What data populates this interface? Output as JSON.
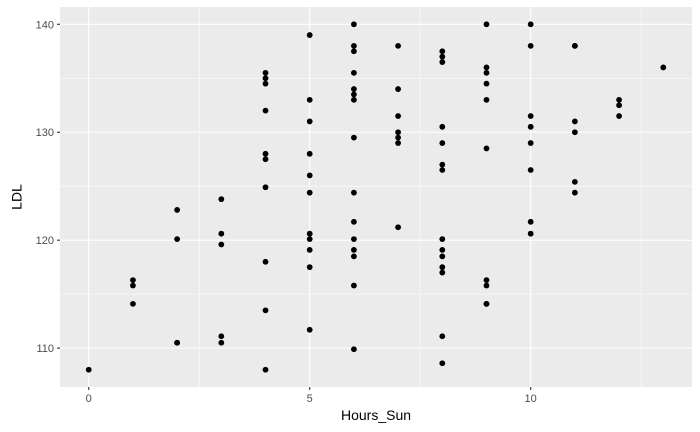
{
  "chart_data": {
    "type": "scatter",
    "title": "",
    "xlabel": "Hours_Sun",
    "ylabel": "LDL",
    "xlim": [
      -0.65,
      13.65
    ],
    "ylim": [
      106.4,
      141.6
    ],
    "x_ticks": [
      0,
      5,
      10
    ],
    "x_minor_ticks": [
      2.5,
      7.5,
      12.5
    ],
    "y_ticks": [
      110,
      120,
      130,
      140
    ],
    "y_minor_ticks": [
      115,
      125,
      135
    ],
    "grid": true,
    "legend": "none",
    "colors": {
      "panel": "#ebebeb",
      "grid": "#ffffff",
      "point": "#000000",
      "tick_text": "#4d4d4d"
    },
    "points": [
      {
        "x": 0,
        "y": 108.0
      },
      {
        "x": 1,
        "y": 116.3
      },
      {
        "x": 1,
        "y": 115.8
      },
      {
        "x": 1,
        "y": 114.1
      },
      {
        "x": 2,
        "y": 122.8
      },
      {
        "x": 2,
        "y": 120.1
      },
      {
        "x": 2,
        "y": 110.5
      },
      {
        "x": 2,
        "y": 110.5
      },
      {
        "x": 3,
        "y": 123.8
      },
      {
        "x": 3,
        "y": 120.6
      },
      {
        "x": 3,
        "y": 119.6
      },
      {
        "x": 3,
        "y": 111.1
      },
      {
        "x": 3,
        "y": 110.5
      },
      {
        "x": 4,
        "y": 135.5
      },
      {
        "x": 4,
        "y": 135.0
      },
      {
        "x": 4,
        "y": 134.5
      },
      {
        "x": 4,
        "y": 132.0
      },
      {
        "x": 4,
        "y": 128.0
      },
      {
        "x": 4,
        "y": 127.5
      },
      {
        "x": 4,
        "y": 124.9
      },
      {
        "x": 4,
        "y": 118.0
      },
      {
        "x": 4,
        "y": 113.5
      },
      {
        "x": 4,
        "y": 108.0
      },
      {
        "x": 5,
        "y": 139.0
      },
      {
        "x": 5,
        "y": 133.0
      },
      {
        "x": 5,
        "y": 131.0
      },
      {
        "x": 5,
        "y": 128.0
      },
      {
        "x": 5,
        "y": 126.0
      },
      {
        "x": 5,
        "y": 124.4
      },
      {
        "x": 5,
        "y": 120.6
      },
      {
        "x": 5,
        "y": 120.1
      },
      {
        "x": 5,
        "y": 119.1
      },
      {
        "x": 5,
        "y": 117.5
      },
      {
        "x": 5,
        "y": 111.7
      },
      {
        "x": 6,
        "y": 140.0
      },
      {
        "x": 6,
        "y": 138.0
      },
      {
        "x": 6,
        "y": 137.5
      },
      {
        "x": 6,
        "y": 135.5
      },
      {
        "x": 6,
        "y": 134.0
      },
      {
        "x": 6,
        "y": 133.5
      },
      {
        "x": 6,
        "y": 133.0
      },
      {
        "x": 6,
        "y": 129.5
      },
      {
        "x": 6,
        "y": 124.4
      },
      {
        "x": 6,
        "y": 121.7
      },
      {
        "x": 6,
        "y": 120.1
      },
      {
        "x": 6,
        "y": 119.1
      },
      {
        "x": 6,
        "y": 118.5
      },
      {
        "x": 6,
        "y": 115.8
      },
      {
        "x": 6,
        "y": 109.9
      },
      {
        "x": 7,
        "y": 138.0
      },
      {
        "x": 7,
        "y": 134.0
      },
      {
        "x": 7,
        "y": 131.5
      },
      {
        "x": 7,
        "y": 130.0
      },
      {
        "x": 7,
        "y": 129.5
      },
      {
        "x": 7,
        "y": 129.0
      },
      {
        "x": 7,
        "y": 121.2
      },
      {
        "x": 8,
        "y": 137.5
      },
      {
        "x": 8,
        "y": 137.0
      },
      {
        "x": 8,
        "y": 136.5
      },
      {
        "x": 8,
        "y": 130.5
      },
      {
        "x": 8,
        "y": 129.0
      },
      {
        "x": 8,
        "y": 127.0
      },
      {
        "x": 8,
        "y": 126.5
      },
      {
        "x": 8,
        "y": 120.1
      },
      {
        "x": 8,
        "y": 119.1
      },
      {
        "x": 8,
        "y": 118.5
      },
      {
        "x": 8,
        "y": 117.5
      },
      {
        "x": 8,
        "y": 117.0
      },
      {
        "x": 8,
        "y": 111.1
      },
      {
        "x": 8,
        "y": 108.6
      },
      {
        "x": 9,
        "y": 140.0
      },
      {
        "x": 9,
        "y": 136.0
      },
      {
        "x": 9,
        "y": 135.5
      },
      {
        "x": 9,
        "y": 134.5
      },
      {
        "x": 9,
        "y": 133.0
      },
      {
        "x": 9,
        "y": 128.5
      },
      {
        "x": 9,
        "y": 116.3
      },
      {
        "x": 9,
        "y": 115.8
      },
      {
        "x": 9,
        "y": 114.1
      },
      {
        "x": 9,
        "y": 114.1
      },
      {
        "x": 10,
        "y": 140.0
      },
      {
        "x": 10,
        "y": 138.0
      },
      {
        "x": 10,
        "y": 131.5
      },
      {
        "x": 10,
        "y": 130.5
      },
      {
        "x": 10,
        "y": 129.0
      },
      {
        "x": 10,
        "y": 126.5
      },
      {
        "x": 10,
        "y": 121.7
      },
      {
        "x": 10,
        "y": 120.6
      },
      {
        "x": 11,
        "y": 138.0
      },
      {
        "x": 11,
        "y": 138.0
      },
      {
        "x": 11,
        "y": 131.0
      },
      {
        "x": 11,
        "y": 130.0
      },
      {
        "x": 11,
        "y": 125.4
      },
      {
        "x": 11,
        "y": 124.4
      },
      {
        "x": 12,
        "y": 133.0
      },
      {
        "x": 12,
        "y": 132.5
      },
      {
        "x": 12,
        "y": 131.5
      },
      {
        "x": 13,
        "y": 136.0
      }
    ]
  }
}
